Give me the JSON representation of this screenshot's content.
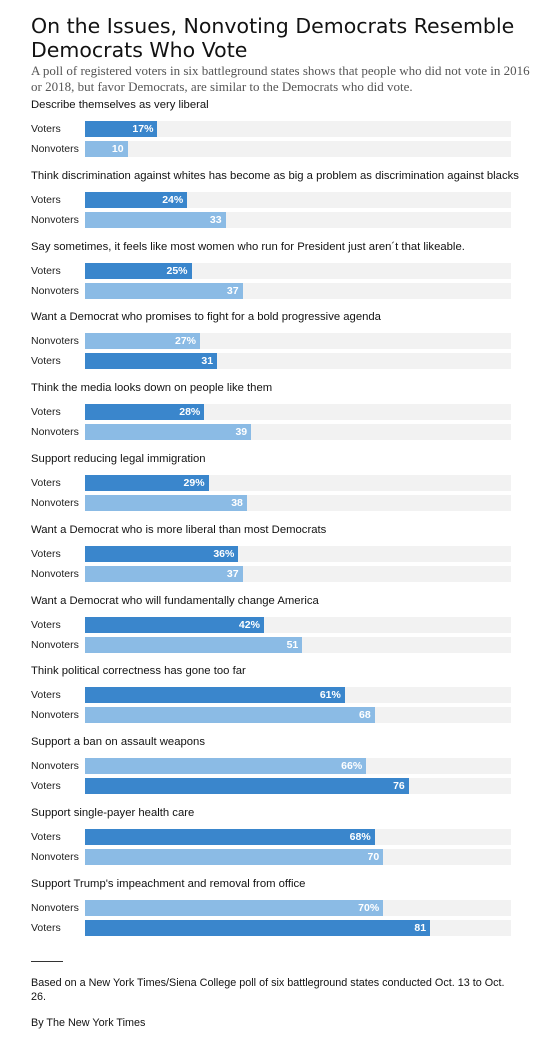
{
  "header": {
    "title": "On the Issues, Nonvoting Democrats Resemble Democrats Who Vote",
    "subtitle": "A poll of registered voters in six battleground states shows that people who did not vote in 2016 or 2018, but favor Democrats, are similar to the Democrats who did vote."
  },
  "footer": {
    "note": "Based on a New York Times/Siena College poll of six battleground states conducted Oct. 13 to Oct. 26.",
    "credit": "By The New York Times"
  },
  "chart_data": {
    "type": "bar",
    "orientation": "horizontal",
    "xlim": [
      0,
      100
    ],
    "unit": "%",
    "colors": {
      "Voters": "#3a86cc",
      "Nonvoters": "#8bbbe5"
    },
    "groups": [
      {
        "label": "Describe themselves as very liberal",
        "rows": [
          {
            "name": "Voters",
            "value": 17,
            "text": "17%"
          },
          {
            "name": "Nonvoters",
            "value": 10,
            "text": "10"
          }
        ]
      },
      {
        "label": "Think discrimination against whites has become as big a problem as discrimination against blacks",
        "rows": [
          {
            "name": "Voters",
            "value": 24,
            "text": "24%"
          },
          {
            "name": "Nonvoters",
            "value": 33,
            "text": "33"
          }
        ]
      },
      {
        "label": "Say sometimes, it feels like most women who run for President just aren´t that likeable.",
        "rows": [
          {
            "name": "Voters",
            "value": 25,
            "text": "25%"
          },
          {
            "name": "Nonvoters",
            "value": 37,
            "text": "37"
          }
        ]
      },
      {
        "label": "Want a Democrat who promises to fight for a bold progressive agenda",
        "rows": [
          {
            "name": "Nonvoters",
            "value": 27,
            "text": "27%"
          },
          {
            "name": "Voters",
            "value": 31,
            "text": "31"
          }
        ]
      },
      {
        "label": "Think the media looks down on people like them",
        "rows": [
          {
            "name": "Voters",
            "value": 28,
            "text": "28%"
          },
          {
            "name": "Nonvoters",
            "value": 39,
            "text": "39"
          }
        ]
      },
      {
        "label": "Support reducing legal immigration",
        "rows": [
          {
            "name": "Voters",
            "value": 29,
            "text": "29%"
          },
          {
            "name": "Nonvoters",
            "value": 38,
            "text": "38"
          }
        ]
      },
      {
        "label": "Want a Democrat who is more liberal than most Democrats",
        "rows": [
          {
            "name": "Voters",
            "value": 36,
            "text": "36%"
          },
          {
            "name": "Nonvoters",
            "value": 37,
            "text": "37"
          }
        ]
      },
      {
        "label": "Want a Democrat who will fundamentally change America",
        "rows": [
          {
            "name": "Voters",
            "value": 42,
            "text": "42%"
          },
          {
            "name": "Nonvoters",
            "value": 51,
            "text": "51"
          }
        ]
      },
      {
        "label": "Think political correctness has gone too far",
        "rows": [
          {
            "name": "Voters",
            "value": 61,
            "text": "61%"
          },
          {
            "name": "Nonvoters",
            "value": 68,
            "text": "68"
          }
        ]
      },
      {
        "label": "Support a ban on assault weapons",
        "rows": [
          {
            "name": "Nonvoters",
            "value": 66,
            "text": "66%"
          },
          {
            "name": "Voters",
            "value": 76,
            "text": "76"
          }
        ]
      },
      {
        "label": "Support single-payer health care",
        "rows": [
          {
            "name": "Voters",
            "value": 68,
            "text": "68%"
          },
          {
            "name": "Nonvoters",
            "value": 70,
            "text": "70"
          }
        ]
      },
      {
        "label": "Support Trump's impeachment and removal from office",
        "rows": [
          {
            "name": "Nonvoters",
            "value": 70,
            "text": "70%"
          },
          {
            "name": "Voters",
            "value": 81,
            "text": "81"
          }
        ]
      }
    ]
  }
}
